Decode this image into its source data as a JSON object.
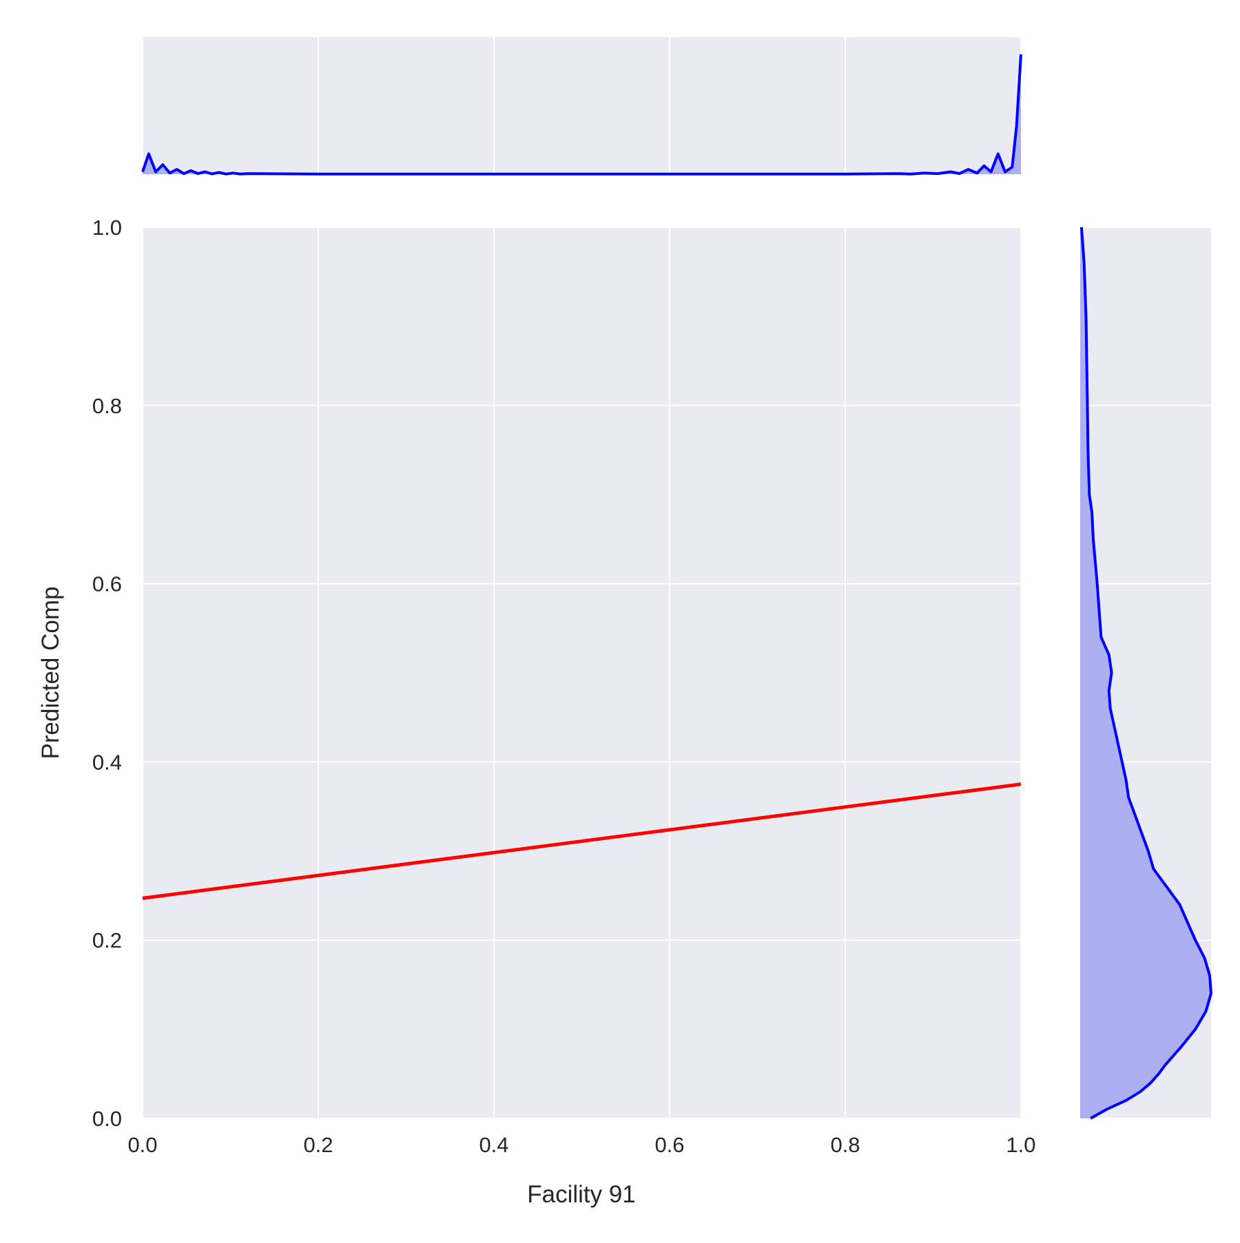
{
  "chart_data": {
    "type": "jointplot",
    "title": "",
    "xlabel": "Facility 91",
    "ylabel": "Predicted Comp",
    "xlim": [
      0.0,
      1.0
    ],
    "ylim": [
      0.0,
      1.0
    ],
    "x_ticks": [
      "0.0",
      "0.2",
      "0.4",
      "0.6",
      "0.8",
      "1.0"
    ],
    "y_ticks": [
      "0.0",
      "0.2",
      "0.4",
      "0.6",
      "0.8",
      "1.0"
    ],
    "grid": true,
    "colors": {
      "background": "#eaeaf2",
      "grid": "#ffffff",
      "regression_line": "#ff0000",
      "kde_line": "#0000ff",
      "kde_fill": "#adaff3"
    },
    "regression_line": {
      "x": [
        0.0,
        1.0
      ],
      "y": [
        0.247,
        0.375
      ]
    },
    "top_marginal_kde": {
      "x": [
        0.0,
        0.007,
        0.015,
        0.023,
        0.031,
        0.039,
        0.047,
        0.055,
        0.063,
        0.071,
        0.079,
        0.087,
        0.095,
        0.103,
        0.111,
        0.12,
        0.2,
        0.3,
        0.4,
        0.5,
        0.6,
        0.7,
        0.8,
        0.86,
        0.875,
        0.89,
        0.905,
        0.92,
        0.93,
        0.94,
        0.95,
        0.958,
        0.966,
        0.974,
        0.982,
        0.99,
        0.995,
        1.0
      ],
      "density": [
        0.02,
        0.17,
        0.02,
        0.08,
        0.01,
        0.04,
        0.005,
        0.03,
        0.005,
        0.02,
        0.003,
        0.015,
        0.002,
        0.01,
        0.002,
        0.005,
        0.002,
        0.002,
        0.002,
        0.002,
        0.002,
        0.002,
        0.002,
        0.005,
        0.002,
        0.01,
        0.005,
        0.02,
        0.005,
        0.04,
        0.01,
        0.07,
        0.02,
        0.17,
        0.02,
        0.06,
        0.4,
        1.0
      ]
    },
    "right_marginal_kde": {
      "y": [
        0.0,
        0.01,
        0.02,
        0.03,
        0.04,
        0.05,
        0.06,
        0.08,
        0.1,
        0.12,
        0.14,
        0.16,
        0.18,
        0.2,
        0.22,
        0.24,
        0.26,
        0.28,
        0.3,
        0.32,
        0.34,
        0.36,
        0.38,
        0.4,
        0.42,
        0.44,
        0.46,
        0.48,
        0.5,
        0.52,
        0.54,
        0.56,
        0.6,
        0.65,
        0.68,
        0.7,
        0.75,
        0.8,
        0.9,
        0.96,
        1.0
      ],
      "density": [
        0.08,
        0.2,
        0.35,
        0.46,
        0.54,
        0.6,
        0.65,
        0.77,
        0.88,
        0.96,
        1.0,
        0.99,
        0.95,
        0.88,
        0.82,
        0.76,
        0.66,
        0.56,
        0.52,
        0.47,
        0.42,
        0.37,
        0.35,
        0.32,
        0.29,
        0.26,
        0.23,
        0.22,
        0.24,
        0.22,
        0.16,
        0.15,
        0.13,
        0.1,
        0.09,
        0.07,
        0.06,
        0.055,
        0.045,
        0.03,
        0.01
      ]
    }
  }
}
